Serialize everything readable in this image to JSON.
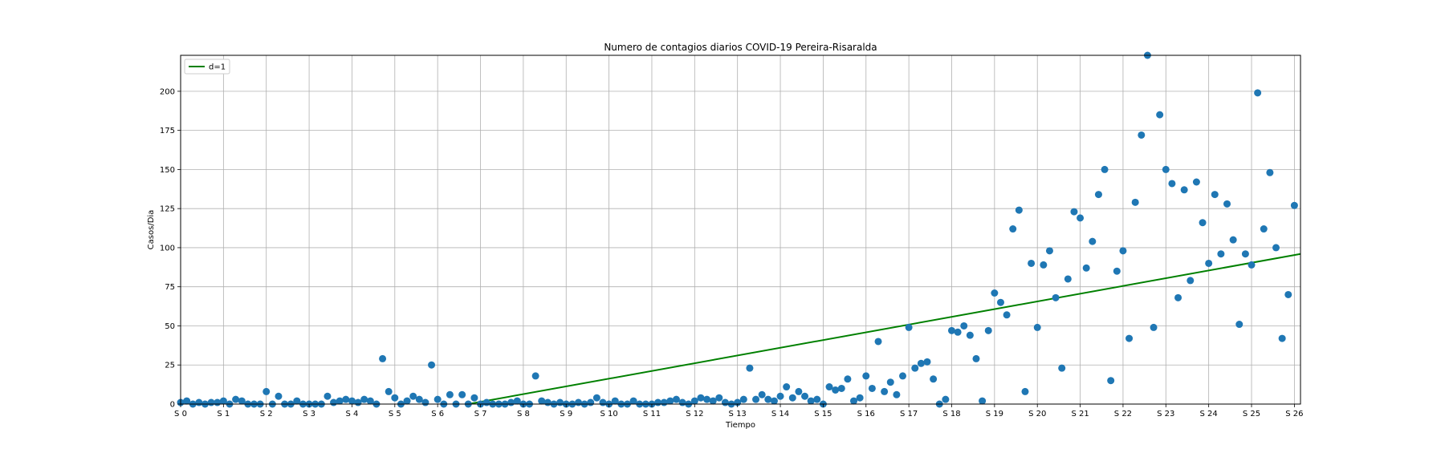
{
  "chart_data": {
    "type": "scatter",
    "title": "Numero de contagios diarios COVID-19 Pereira-Risaralda",
    "xlabel": "Tiempo",
    "ylabel": "Casos/Dia",
    "xlim": [
      0,
      183
    ],
    "ylim": [
      0,
      223
    ],
    "grid": true,
    "legend_position": "upper-left",
    "x_ticks": [
      {
        "value": 0,
        "label": "S 0"
      },
      {
        "value": 7,
        "label": "S 1"
      },
      {
        "value": 14,
        "label": "S 2"
      },
      {
        "value": 21,
        "label": "S 3"
      },
      {
        "value": 28,
        "label": "S 4"
      },
      {
        "value": 35,
        "label": "S 5"
      },
      {
        "value": 42,
        "label": "S 6"
      },
      {
        "value": 49,
        "label": "S 7"
      },
      {
        "value": 56,
        "label": "S 8"
      },
      {
        "value": 63,
        "label": "S 9"
      },
      {
        "value": 70,
        "label": "S 10"
      },
      {
        "value": 77,
        "label": "S 11"
      },
      {
        "value": 84,
        "label": "S 12"
      },
      {
        "value": 91,
        "label": "S 13"
      },
      {
        "value": 98,
        "label": "S 14"
      },
      {
        "value": 105,
        "label": "S 15"
      },
      {
        "value": 112,
        "label": "S 16"
      },
      {
        "value": 119,
        "label": "S 17"
      },
      {
        "value": 126,
        "label": "S 18"
      },
      {
        "value": 133,
        "label": "S 19"
      },
      {
        "value": 140,
        "label": "S 20"
      },
      {
        "value": 147,
        "label": "S 21"
      },
      {
        "value": 154,
        "label": "S 22"
      },
      {
        "value": 161,
        "label": "S 23"
      },
      {
        "value": 168,
        "label": "S 24"
      },
      {
        "value": 175,
        "label": "S 25"
      },
      {
        "value": 182,
        "label": "S 26"
      }
    ],
    "y_ticks": [
      {
        "value": 0,
        "label": "0"
      },
      {
        "value": 25,
        "label": "25"
      },
      {
        "value": 50,
        "label": "50"
      },
      {
        "value": 75,
        "label": "75"
      },
      {
        "value": 100,
        "label": "100"
      },
      {
        "value": 125,
        "label": "125"
      },
      {
        "value": 150,
        "label": "150"
      },
      {
        "value": 175,
        "label": "175"
      },
      {
        "value": 200,
        "label": "200"
      }
    ],
    "series": [
      {
        "type": "scatter",
        "color": "#1f77b4",
        "x": [
          0,
          1,
          2,
          3,
          4,
          5,
          6,
          7,
          8,
          9,
          10,
          11,
          12,
          13,
          14,
          15,
          16,
          17,
          18,
          19,
          20,
          21,
          22,
          23,
          24,
          25,
          26,
          27,
          28,
          29,
          30,
          31,
          32,
          33,
          34,
          35,
          36,
          37,
          38,
          39,
          40,
          41,
          42,
          43,
          44,
          45,
          46,
          47,
          48,
          49,
          50,
          51,
          52,
          53,
          54,
          55,
          56,
          57,
          58,
          59,
          60,
          61,
          62,
          63,
          64,
          65,
          66,
          67,
          68,
          69,
          70,
          71,
          72,
          73,
          74,
          75,
          76,
          77,
          78,
          79,
          80,
          81,
          82,
          83,
          84,
          85,
          86,
          87,
          88,
          89,
          90,
          91,
          92,
          93,
          94,
          95,
          96,
          97,
          98,
          99,
          100,
          101,
          102,
          103,
          104,
          105,
          106,
          107,
          108,
          109,
          110,
          111,
          112,
          113,
          114,
          115,
          116,
          117,
          118,
          119,
          120,
          121,
          122,
          123,
          124,
          125,
          126,
          127,
          128,
          129,
          130,
          131,
          132,
          133,
          134,
          135,
          136,
          137,
          138,
          139,
          140,
          141,
          142,
          143,
          144,
          145,
          146,
          147,
          148,
          149,
          150,
          151,
          152,
          153,
          154,
          155,
          156,
          157,
          158,
          159,
          160,
          161,
          162,
          163,
          164,
          165,
          166,
          167,
          168,
          169,
          170,
          171,
          172,
          173,
          174,
          175,
          176,
          177,
          178,
          179,
          180,
          181,
          182
        ],
        "y": [
          1,
          2,
          0,
          1,
          0,
          1,
          1,
          2,
          0,
          3,
          2,
          0,
          0,
          0,
          8,
          0,
          5,
          0,
          0,
          2,
          0,
          0,
          0,
          0,
          5,
          1,
          2,
          3,
          2,
          1,
          3,
          2,
          0,
          29,
          8,
          4,
          0,
          2,
          5,
          3,
          1,
          25,
          3,
          0,
          6,
          0,
          6,
          0,
          4,
          0,
          1,
          0,
          0,
          0,
          1,
          2,
          0,
          0,
          18,
          2,
          1,
          0,
          1,
          0,
          0,
          1,
          0,
          1,
          4,
          1,
          0,
          2,
          0,
          0,
          2,
          0,
          0,
          0,
          1,
          1,
          2,
          3,
          1,
          0,
          2,
          4,
          3,
          2,
          4,
          1,
          0,
          1,
          3,
          23,
          3,
          6,
          3,
          2,
          5,
          11,
          4,
          8,
          5,
          2,
          3,
          0,
          11,
          9,
          10,
          16,
          2,
          4,
          18,
          10,
          40,
          8,
          14,
          6,
          18,
          49,
          23,
          26,
          27,
          16,
          0,
          3,
          47,
          46,
          50,
          44,
          29,
          2,
          47,
          71,
          65,
          57,
          112,
          124,
          8,
          90,
          49,
          89,
          98,
          68,
          23,
          80,
          123,
          119,
          87,
          104,
          134,
          150,
          15,
          85,
          98,
          42,
          129,
          172,
          223,
          49,
          185,
          150,
          141,
          68,
          137,
          79,
          142,
          116,
          90,
          134,
          96,
          128,
          105,
          51,
          96,
          89,
          199,
          112,
          148,
          100,
          42,
          70,
          127
        ]
      },
      {
        "type": "line",
        "name": "d=1",
        "color": "#008000",
        "x": [
          47,
          183
        ],
        "y": [
          0,
          96
        ]
      }
    ]
  }
}
